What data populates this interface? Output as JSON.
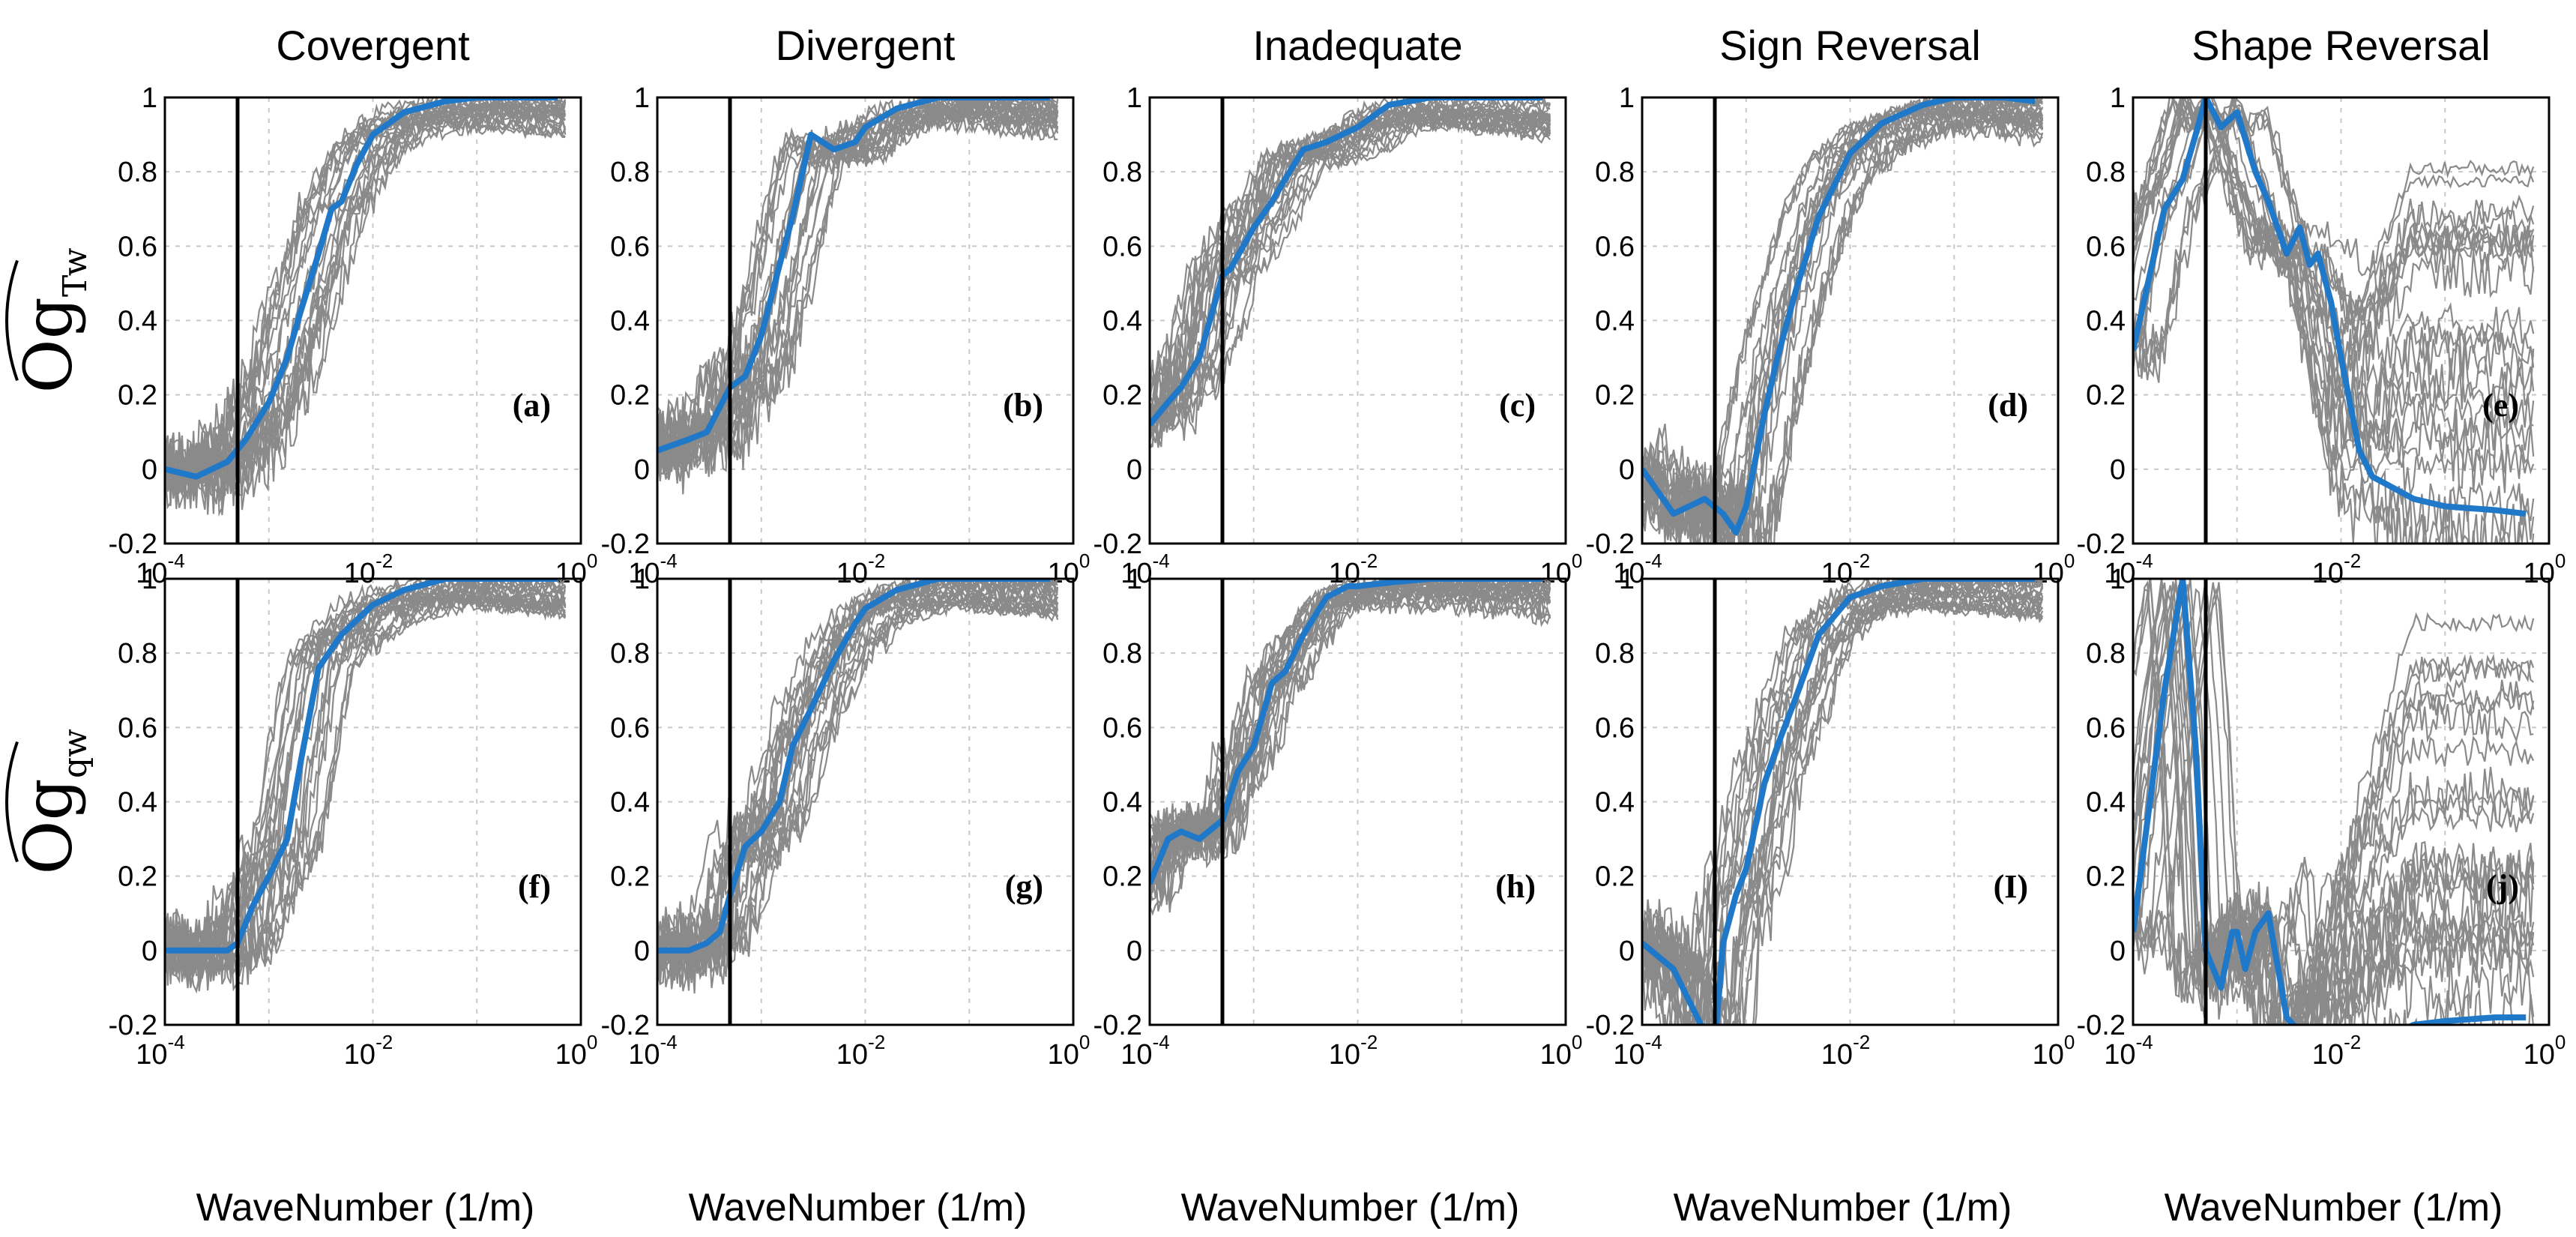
{
  "colors": {
    "highlight": "#1f78c8",
    "ensemble": "#8a8a8a",
    "marker_line": "#000000"
  },
  "column_titles": [
    "Covergent",
    "Divergent",
    "Inadequate",
    "Sign Reversal",
    "Shape Reversal"
  ],
  "row_ylabels": [
    {
      "main": "Og",
      "sub": "Tw"
    },
    {
      "main": "Og",
      "sub": "qw"
    }
  ],
  "xlabel": "WaveNumber (1/m)",
  "x_tick_labels": [
    {
      "base": "10",
      "exp": "-4"
    },
    {
      "base": "10",
      "exp": "-2"
    },
    {
      "base": "10",
      "exp": "0"
    }
  ],
  "y_tick_labels": [
    "1",
    "0.8",
    "0.6",
    "0.4",
    "0.2",
    "0",
    "-0.2"
  ],
  "chart_data": [
    {
      "type": "line",
      "panel_label": "(a)",
      "xscale": "log",
      "xlim": [
        0.0001,
        1
      ],
      "ylim": [
        -0.2,
        1
      ],
      "grid": true,
      "vline_x": 0.0005,
      "series": [
        {
          "x": [
            0.0001,
            0.0002,
            0.0004,
            0.0006,
            0.001,
            0.0015,
            0.002,
            0.003,
            0.004,
            0.005,
            0.007,
            0.01,
            0.02,
            0.05,
            0.1,
            0.3,
            0.6
          ],
          "y": [
            0.0,
            -0.02,
            0.02,
            0.08,
            0.18,
            0.3,
            0.42,
            0.58,
            0.7,
            0.72,
            0.82,
            0.9,
            0.96,
            0.99,
            1.0,
            1.0,
            1.0
          ]
        }
      ]
    },
    {
      "type": "line",
      "panel_label": "(b)",
      "xscale": "log",
      "xlim": [
        0.0001,
        1
      ],
      "ylim": [
        -0.2,
        1
      ],
      "grid": true,
      "vline_x": 0.0005,
      "series": [
        {
          "x": [
            0.0001,
            0.0002,
            0.0003,
            0.0005,
            0.0007,
            0.001,
            0.0015,
            0.002,
            0.003,
            0.005,
            0.008,
            0.01,
            0.02,
            0.05,
            0.1,
            0.3,
            0.6
          ],
          "y": [
            0.05,
            0.08,
            0.1,
            0.22,
            0.25,
            0.36,
            0.55,
            0.68,
            0.9,
            0.86,
            0.88,
            0.92,
            0.97,
            1.0,
            1.0,
            1.0,
            1.0
          ]
        }
      ]
    },
    {
      "type": "line",
      "panel_label": "(c)",
      "xscale": "log",
      "xlim": [
        0.0001,
        1
      ],
      "ylim": [
        -0.2,
        1
      ],
      "grid": true,
      "vline_x": 0.0005,
      "series": [
        {
          "x": [
            0.0001,
            0.00015,
            0.0002,
            0.0003,
            0.0005,
            0.0006,
            0.001,
            0.0015,
            0.002,
            0.003,
            0.005,
            0.01,
            0.02,
            0.05,
            0.1,
            0.3,
            0.6
          ],
          "y": [
            0.12,
            0.18,
            0.22,
            0.3,
            0.52,
            0.54,
            0.65,
            0.72,
            0.78,
            0.86,
            0.88,
            0.92,
            0.98,
            1.0,
            1.0,
            1.0,
            1.0
          ]
        }
      ]
    },
    {
      "type": "line",
      "panel_label": "(d)",
      "xscale": "log",
      "xlim": [
        0.0001,
        1
      ],
      "ylim": [
        -0.2,
        1
      ],
      "grid": true,
      "vline_x": 0.0005,
      "series": [
        {
          "x": [
            0.0001,
            0.0002,
            0.0004,
            0.0006,
            0.0008,
            0.001,
            0.0015,
            0.002,
            0.003,
            0.005,
            0.01,
            0.02,
            0.05,
            0.1,
            0.3,
            0.6
          ],
          "y": [
            0.0,
            -0.12,
            -0.08,
            -0.12,
            -0.17,
            -0.1,
            0.15,
            0.3,
            0.48,
            0.68,
            0.85,
            0.93,
            0.98,
            1.0,
            1.0,
            0.99
          ]
        }
      ]
    },
    {
      "type": "line",
      "panel_label": "(e)",
      "xscale": "log",
      "xlim": [
        0.0001,
        1
      ],
      "ylim": [
        -0.2,
        1
      ],
      "grid": true,
      "vline_x": 0.0005,
      "series": [
        {
          "x": [
            0.0001,
            0.0002,
            0.0003,
            0.0004,
            0.0005,
            0.0007,
            0.001,
            0.0015,
            0.002,
            0.003,
            0.004,
            0.005,
            0.006,
            0.008,
            0.01,
            0.015,
            0.02,
            0.05,
            0.1,
            0.3,
            0.6
          ],
          "y": [
            0.32,
            0.7,
            0.78,
            0.9,
            1.0,
            0.92,
            0.96,
            0.8,
            0.72,
            0.58,
            0.65,
            0.55,
            0.58,
            0.45,
            0.3,
            0.05,
            -0.02,
            -0.08,
            -0.1,
            -0.11,
            -0.12
          ]
        }
      ]
    },
    {
      "type": "line",
      "panel_label": "(f)",
      "xscale": "log",
      "xlim": [
        0.0001,
        1
      ],
      "ylim": [
        -0.2,
        1
      ],
      "grid": true,
      "vline_x": 0.0005,
      "series": [
        {
          "x": [
            0.0001,
            0.0002,
            0.0004,
            0.0005,
            0.0007,
            0.001,
            0.0015,
            0.002,
            0.003,
            0.005,
            0.01,
            0.02,
            0.05,
            0.1,
            0.3,
            0.6
          ],
          "y": [
            0.0,
            0.0,
            0.0,
            0.02,
            0.12,
            0.2,
            0.3,
            0.5,
            0.76,
            0.85,
            0.93,
            0.97,
            1.0,
            1.0,
            1.0,
            1.0
          ]
        }
      ]
    },
    {
      "type": "line",
      "panel_label": "(g)",
      "xscale": "log",
      "xlim": [
        0.0001,
        1
      ],
      "ylim": [
        -0.2,
        1
      ],
      "grid": true,
      "vline_x": 0.0005,
      "series": [
        {
          "x": [
            0.0001,
            0.0002,
            0.0003,
            0.0004,
            0.0005,
            0.0007,
            0.001,
            0.0015,
            0.002,
            0.003,
            0.005,
            0.008,
            0.01,
            0.02,
            0.05,
            0.1,
            0.3,
            0.6
          ],
          "y": [
            0.0,
            0.0,
            0.02,
            0.05,
            0.15,
            0.28,
            0.32,
            0.4,
            0.55,
            0.65,
            0.78,
            0.88,
            0.92,
            0.97,
            1.0,
            1.0,
            1.0,
            1.0
          ]
        }
      ]
    },
    {
      "type": "line",
      "panel_label": "(h)",
      "xscale": "log",
      "xlim": [
        0.0001,
        1
      ],
      "ylim": [
        -0.2,
        1
      ],
      "grid": true,
      "vline_x": 0.0005,
      "series": [
        {
          "x": [
            0.0001,
            0.00015,
            0.0002,
            0.0003,
            0.0005,
            0.0007,
            0.001,
            0.0015,
            0.002,
            0.003,
            0.005,
            0.008,
            0.01,
            0.02,
            0.05,
            0.1,
            0.3,
            0.6
          ],
          "y": [
            0.18,
            0.3,
            0.32,
            0.3,
            0.35,
            0.48,
            0.55,
            0.72,
            0.75,
            0.85,
            0.95,
            0.98,
            0.98,
            0.99,
            1.0,
            1.0,
            1.0,
            1.0
          ]
        }
      ]
    },
    {
      "type": "line",
      "panel_label": "(I)",
      "xscale": "log",
      "xlim": [
        0.0001,
        1
      ],
      "ylim": [
        -0.2,
        1
      ],
      "grid": true,
      "vline_x": 0.0005,
      "series": [
        {
          "x": [
            0.0001,
            0.0002,
            0.0003,
            0.0004,
            0.0005,
            0.0006,
            0.0008,
            0.001,
            0.0015,
            0.002,
            0.003,
            0.005,
            0.01,
            0.02,
            0.05,
            0.1,
            0.3,
            0.6
          ],
          "y": [
            0.02,
            -0.05,
            -0.15,
            -0.22,
            -0.25,
            0.02,
            0.15,
            0.22,
            0.45,
            0.55,
            0.68,
            0.85,
            0.95,
            0.98,
            1.0,
            1.0,
            1.0,
            1.0
          ]
        }
      ]
    },
    {
      "type": "line",
      "panel_label": "(j)",
      "xscale": "log",
      "xlim": [
        0.0001,
        1
      ],
      "ylim": [
        -0.2,
        1
      ],
      "grid": true,
      "vline_x": 0.0005,
      "series": [
        {
          "x": [
            0.0001,
            0.0002,
            0.0003,
            0.0004,
            0.0005,
            0.0007,
            0.0009,
            0.001,
            0.0012,
            0.0015,
            0.002,
            0.003,
            0.005,
            0.008,
            0.01,
            0.02,
            0.05,
            0.1,
            0.3,
            0.6
          ],
          "y": [
            0.05,
            0.7,
            1.0,
            0.55,
            0.0,
            -0.1,
            0.05,
            0.05,
            -0.05,
            0.05,
            0.1,
            -0.18,
            -0.25,
            -0.25,
            -0.25,
            -0.25,
            -0.2,
            -0.19,
            -0.18,
            -0.18
          ]
        }
      ]
    }
  ]
}
